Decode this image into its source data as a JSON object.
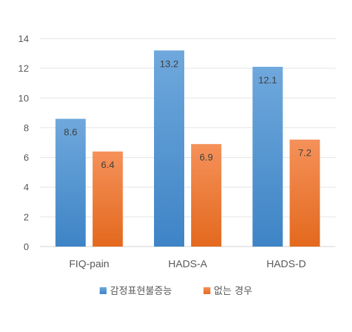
{
  "chart_data": {
    "type": "bar",
    "categories": [
      "FIQ-pain",
      "HADS-A",
      "HADS-D"
    ],
    "series": [
      {
        "name": "감정표현불증능",
        "values": [
          8.6,
          13.2,
          12.1
        ],
        "color": "#4A90D9"
      },
      {
        "name": "없는 경우",
        "values": [
          6.4,
          6.9,
          7.2
        ],
        "color": "#ED7D31"
      }
    ],
    "y_ticks": [
      "0",
      "2",
      "4",
      "6",
      "8",
      "10",
      "12",
      "14"
    ],
    "ylim": [
      0,
      14
    ],
    "grid": true,
    "legend_position": "bottom",
    "title": "",
    "xlabel": "",
    "ylabel": ""
  }
}
